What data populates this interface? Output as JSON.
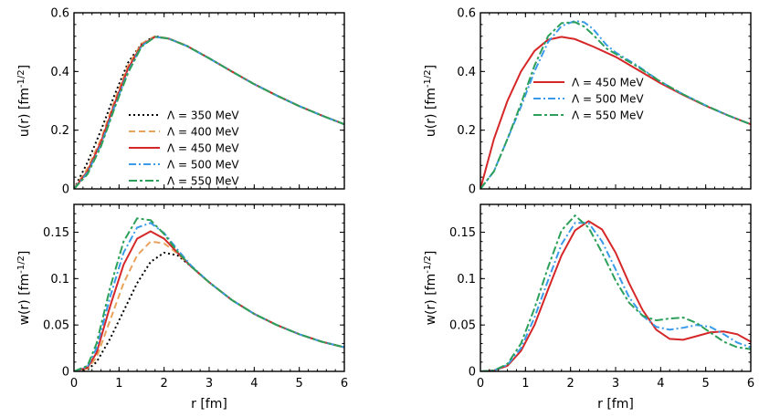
{
  "chart_data": [
    {
      "type": "line",
      "panel": "top-left",
      "xlabel": "",
      "ylabel": "u(r) [fm^{-1/2}]",
      "xlim": [
        0,
        6
      ],
      "ylim": [
        0,
        0.6
      ],
      "xticks": [
        "0",
        "1",
        "2",
        "3",
        "4",
        "5",
        "6"
      ],
      "yticks": [
        "0",
        "0.2",
        "0.4",
        "0.6"
      ],
      "x_tick_labels_visible": false,
      "legend": "center-left",
      "series": [
        {
          "name": "Λ = 350 MeV",
          "color": "#000000",
          "dash": "dotted",
          "x": [
            0,
            0.3,
            0.6,
            0.9,
            1.2,
            1.5,
            1.8,
            2.1,
            2.5,
            3,
            3.5,
            4,
            4.5,
            5,
            5.5,
            6
          ],
          "y": [
            0,
            0.09,
            0.2,
            0.32,
            0.43,
            0.495,
            0.52,
            0.512,
            0.488,
            0.445,
            0.4,
            0.357,
            0.318,
            0.282,
            0.25,
            0.22
          ]
        },
        {
          "name": "Λ = 400 MeV",
          "color": "#e8a35c",
          "dash": "dashed",
          "x": [
            0,
            0.3,
            0.6,
            0.9,
            1.2,
            1.5,
            1.8,
            2.1,
            2.5,
            3,
            3.5,
            4,
            4.5,
            5,
            5.5,
            6
          ],
          "y": [
            0,
            0.07,
            0.17,
            0.3,
            0.42,
            0.495,
            0.52,
            0.513,
            0.488,
            0.445,
            0.4,
            0.357,
            0.318,
            0.282,
            0.25,
            0.22
          ]
        },
        {
          "name": "Λ = 450 MeV",
          "color": "#d62728",
          "dash": "solid",
          "x": [
            0,
            0.3,
            0.6,
            0.9,
            1.2,
            1.5,
            1.8,
            2.1,
            2.5,
            3,
            3.5,
            4,
            4.5,
            5,
            5.5,
            6
          ],
          "y": [
            0,
            0.06,
            0.16,
            0.29,
            0.41,
            0.49,
            0.518,
            0.512,
            0.487,
            0.445,
            0.4,
            0.357,
            0.318,
            0.282,
            0.25,
            0.22
          ]
        },
        {
          "name": "Λ = 500 MeV",
          "color": "#3a9bea",
          "dash": "dashdot",
          "x": [
            0,
            0.3,
            0.6,
            0.9,
            1.2,
            1.5,
            1.8,
            2.1,
            2.5,
            3,
            3.5,
            4,
            4.5,
            5,
            5.5,
            6
          ],
          "y": [
            0,
            0.055,
            0.15,
            0.28,
            0.4,
            0.487,
            0.518,
            0.512,
            0.487,
            0.445,
            0.4,
            0.357,
            0.318,
            0.282,
            0.25,
            0.22
          ]
        },
        {
          "name": "Λ = 550 MeV",
          "color": "#2ca05a",
          "dash": "dashdash",
          "x": [
            0,
            0.3,
            0.6,
            0.9,
            1.2,
            1.5,
            1.8,
            2.1,
            2.5,
            3,
            3.5,
            4,
            4.5,
            5,
            5.5,
            6
          ],
          "y": [
            0,
            0.05,
            0.145,
            0.275,
            0.395,
            0.485,
            0.518,
            0.512,
            0.487,
            0.445,
            0.4,
            0.357,
            0.318,
            0.282,
            0.25,
            0.22
          ]
        }
      ]
    },
    {
      "type": "line",
      "panel": "top-right",
      "xlabel": "",
      "ylabel": "u(r) [fm^{-1/2}]",
      "xlim": [
        0,
        6
      ],
      "ylim": [
        0,
        0.6
      ],
      "xticks": [
        "0",
        "1",
        "2",
        "3",
        "4",
        "5",
        "6"
      ],
      "yticks": [
        "0",
        "0.2",
        "0.4",
        "0.6"
      ],
      "x_tick_labels_visible": false,
      "legend": "center-left",
      "series": [
        {
          "name": "Λ = 450 MeV",
          "color": "#d62728",
          "dash": "solid",
          "x": [
            0,
            0.3,
            0.6,
            0.9,
            1.2,
            1.5,
            1.8,
            2.1,
            2.5,
            3,
            3.5,
            4,
            4.5,
            5,
            5.5,
            6
          ],
          "y": [
            0,
            0.17,
            0.3,
            0.4,
            0.47,
            0.508,
            0.518,
            0.51,
            0.485,
            0.45,
            0.405,
            0.36,
            0.32,
            0.283,
            0.25,
            0.22
          ]
        },
        {
          "name": "Λ = 500 MeV",
          "color": "#3a9bea",
          "dash": "dashdot",
          "x": [
            0,
            0.3,
            0.6,
            0.9,
            1.2,
            1.5,
            1.8,
            2.1,
            2.3,
            2.5,
            2.8,
            3,
            3.5,
            4,
            4.5,
            5,
            5.5,
            6
          ],
          "y": [
            0,
            0.06,
            0.17,
            0.28,
            0.4,
            0.5,
            0.555,
            0.572,
            0.568,
            0.545,
            0.49,
            0.465,
            0.418,
            0.365,
            0.322,
            0.284,
            0.25,
            0.22
          ]
        },
        {
          "name": "Λ = 550 MeV",
          "color": "#2ca05a",
          "dash": "dashdash",
          "x": [
            0,
            0.3,
            0.6,
            0.9,
            1.2,
            1.5,
            1.8,
            2.1,
            2.3,
            2.5,
            2.8,
            3,
            3.5,
            4,
            4.5,
            5,
            5.5,
            6
          ],
          "y": [
            0,
            0.06,
            0.17,
            0.29,
            0.42,
            0.52,
            0.565,
            0.568,
            0.553,
            0.525,
            0.478,
            0.46,
            0.415,
            0.365,
            0.322,
            0.284,
            0.25,
            0.22
          ]
        }
      ]
    },
    {
      "type": "line",
      "panel": "bottom-left",
      "xlabel": "r [fm]",
      "ylabel": "w(r) [fm^{-1/2}]",
      "xlim": [
        0,
        6
      ],
      "ylim": [
        0,
        0.18
      ],
      "xticks": [
        "0",
        "1",
        "2",
        "3",
        "4",
        "5",
        "6"
      ],
      "yticks": [
        "0",
        "0.05",
        "0.1",
        "0.15"
      ],
      "x_tick_labels_visible": true,
      "legend": "none",
      "series": [
        {
          "name": "Λ = 350 MeV",
          "color": "#000000",
          "dash": "dotted",
          "x": [
            0,
            0.3,
            0.5,
            0.8,
            1.1,
            1.4,
            1.7,
            2,
            2.3,
            2.6,
            3,
            3.5,
            4,
            4.5,
            5,
            5.5,
            6
          ],
          "y": [
            0,
            0.002,
            0.01,
            0.035,
            0.065,
            0.095,
            0.118,
            0.128,
            0.125,
            0.113,
            0.096,
            0.077,
            0.062,
            0.05,
            0.04,
            0.032,
            0.026
          ]
        },
        {
          "name": "Λ = 400 MeV",
          "color": "#e8a35c",
          "dash": "dashed",
          "x": [
            0,
            0.3,
            0.5,
            0.8,
            1.1,
            1.4,
            1.7,
            2,
            2.3,
            2.6,
            3,
            3.5,
            4,
            4.5,
            5,
            5.5,
            6
          ],
          "y": [
            0,
            0.003,
            0.015,
            0.055,
            0.095,
            0.125,
            0.14,
            0.138,
            0.127,
            0.113,
            0.096,
            0.077,
            0.062,
            0.05,
            0.04,
            0.032,
            0.026
          ]
        },
        {
          "name": "Λ = 450 MeV",
          "color": "#d62728",
          "dash": "solid",
          "x": [
            0,
            0.3,
            0.5,
            0.8,
            1.1,
            1.4,
            1.7,
            2,
            2.3,
            2.6,
            3,
            3.5,
            4,
            4.5,
            5,
            5.5,
            6
          ],
          "y": [
            0,
            0.004,
            0.02,
            0.07,
            0.115,
            0.143,
            0.151,
            0.143,
            0.128,
            0.113,
            0.096,
            0.077,
            0.062,
            0.05,
            0.04,
            0.032,
            0.026
          ]
        },
        {
          "name": "Λ = 500 MeV",
          "color": "#3a9bea",
          "dash": "dashdot",
          "x": [
            0,
            0.3,
            0.5,
            0.8,
            1.1,
            1.4,
            1.7,
            2,
            2.3,
            2.6,
            3,
            3.5,
            4,
            4.5,
            5,
            5.5,
            6
          ],
          "y": [
            0,
            0.005,
            0.025,
            0.08,
            0.128,
            0.155,
            0.16,
            0.149,
            0.131,
            0.114,
            0.096,
            0.077,
            0.062,
            0.05,
            0.04,
            0.032,
            0.026
          ]
        },
        {
          "name": "Λ = 550 MeV",
          "color": "#2ca05a",
          "dash": "dashdash",
          "x": [
            0,
            0.3,
            0.5,
            0.8,
            1.1,
            1.4,
            1.7,
            2,
            2.3,
            2.6,
            3,
            3.5,
            4,
            4.5,
            5,
            5.5,
            6
          ],
          "y": [
            0,
            0.006,
            0.03,
            0.09,
            0.14,
            0.165,
            0.163,
            0.148,
            0.129,
            0.113,
            0.096,
            0.077,
            0.062,
            0.05,
            0.04,
            0.032,
            0.026
          ]
        }
      ]
    },
    {
      "type": "line",
      "panel": "bottom-right",
      "xlabel": "r [fm]",
      "ylabel": "w(r) [fm^{-1/2}]",
      "xlim": [
        0,
        6
      ],
      "ylim": [
        0,
        0.18
      ],
      "xticks": [
        "0",
        "1",
        "2",
        "3",
        "4",
        "5",
        "6"
      ],
      "yticks": [
        "0",
        "0.05",
        "0.1",
        "0.15"
      ],
      "x_tick_labels_visible": true,
      "legend": "none",
      "series": [
        {
          "name": "Λ = 450 MeV",
          "color": "#d62728",
          "dash": "solid",
          "x": [
            0,
            0.3,
            0.6,
            0.9,
            1.2,
            1.5,
            1.8,
            2.1,
            2.4,
            2.7,
            3,
            3.3,
            3.6,
            3.9,
            4.2,
            4.5,
            4.8,
            5.1,
            5.4,
            5.7,
            6
          ],
          "y": [
            0,
            0.001,
            0.006,
            0.022,
            0.05,
            0.088,
            0.125,
            0.152,
            0.162,
            0.153,
            0.128,
            0.095,
            0.066,
            0.045,
            0.035,
            0.034,
            0.038,
            0.042,
            0.043,
            0.04,
            0.032
          ]
        },
        {
          "name": "Λ = 500 MeV",
          "color": "#3a9bea",
          "dash": "dashdot",
          "x": [
            0,
            0.3,
            0.6,
            0.9,
            1.2,
            1.5,
            1.8,
            2.1,
            2.4,
            2.7,
            3,
            3.3,
            3.6,
            3.9,
            4.2,
            4.5,
            4.8,
            5.1,
            5.4,
            5.7,
            6
          ],
          "y": [
            0,
            0.001,
            0.007,
            0.025,
            0.058,
            0.098,
            0.137,
            0.16,
            0.16,
            0.14,
            0.11,
            0.08,
            0.06,
            0.048,
            0.045,
            0.047,
            0.05,
            0.048,
            0.04,
            0.031,
            0.026
          ]
        },
        {
          "name": "Λ = 550 MeV",
          "color": "#2ca05a",
          "dash": "dashdash",
          "x": [
            0,
            0.3,
            0.6,
            0.9,
            1.2,
            1.5,
            1.8,
            2.1,
            2.4,
            2.7,
            3,
            3.3,
            3.6,
            3.9,
            4.2,
            4.5,
            4.8,
            5.1,
            5.4,
            5.7,
            6
          ],
          "y": [
            0,
            0.001,
            0.008,
            0.03,
            0.068,
            0.112,
            0.152,
            0.168,
            0.155,
            0.128,
            0.098,
            0.074,
            0.06,
            0.055,
            0.057,
            0.058,
            0.052,
            0.042,
            0.032,
            0.026,
            0.024
          ]
        }
      ]
    }
  ]
}
